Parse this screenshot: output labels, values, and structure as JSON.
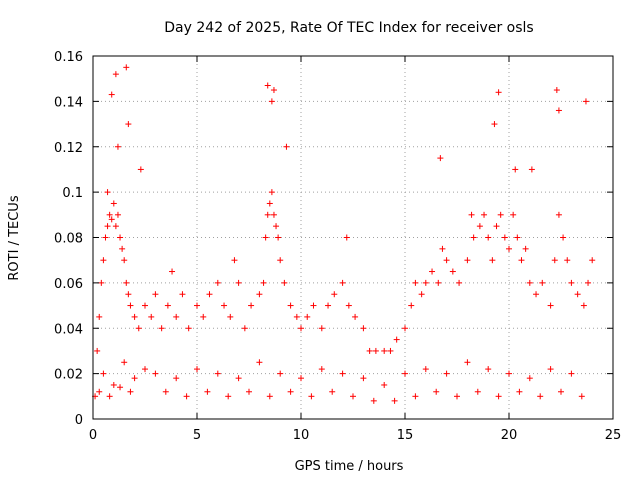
{
  "chart_data": {
    "type": "scatter",
    "title": "Day 242 of 2025, Rate Of TEC Index for receiver osls",
    "xlabel": "GPS time / hours",
    "ylabel": "ROTI / TECUs",
    "xlim": [
      0,
      25
    ],
    "ylim": [
      0,
      0.16
    ],
    "x_ticks": [
      0,
      5,
      10,
      15,
      20,
      25
    ],
    "x_tick_labels": [
      "0",
      "5",
      "10",
      "15",
      "20",
      "25"
    ],
    "y_ticks": [
      0,
      0.02,
      0.04,
      0.06,
      0.08,
      0.1,
      0.12,
      0.14,
      0.16
    ],
    "y_tick_labels": [
      "0",
      "0.02",
      "0.04",
      "0.06",
      "0.08",
      "0.1",
      "0.12",
      "0.14",
      "0.16"
    ],
    "grid": true,
    "marker": "plus",
    "color": "#ff0000",
    "series": [
      {
        "x": [
          0.1,
          0.2,
          0.3,
          0.4,
          0.5,
          0.6,
          0.7,
          0.8,
          0.9,
          1.0,
          1.1,
          1.2,
          1.3,
          1.4,
          1.5,
          1.6,
          1.7,
          1.8,
          2.0,
          2.2,
          2.5,
          2.8,
          3.0,
          3.3,
          3.6,
          4.0,
          4.3,
          4.6,
          5.0,
          5.3,
          5.6,
          6.0,
          6.3,
          6.6,
          7.0,
          7.3,
          7.6,
          8.0,
          8.2,
          8.3,
          8.4,
          8.5,
          8.6,
          8.7,
          8.8,
          8.9,
          9.0,
          9.2,
          9.5,
          9.8,
          10.0,
          10.3,
          10.6,
          11.0,
          11.3,
          11.6,
          12.0,
          12.3,
          12.6,
          13.0,
          13.3,
          13.6,
          14.0,
          14.3,
          14.6,
          15.0,
          15.3,
          15.5,
          15.8,
          16.0,
          16.3,
          16.6,
          16.8,
          17.0,
          17.3,
          17.6,
          18.0,
          18.3,
          18.6,
          18.8,
          19.0,
          19.2,
          19.4,
          19.6,
          19.8,
          20.0,
          20.2,
          20.4,
          20.6,
          20.8,
          21.0,
          21.3,
          21.6,
          22.0,
          22.2,
          22.4,
          22.6,
          22.8,
          23.0,
          23.3,
          23.6,
          23.8,
          24.0,
          0.5,
          1.0,
          1.5,
          2.0,
          2.5,
          3.0,
          4.0,
          5.0,
          6.0,
          7.0,
          8.0,
          9.0,
          10.0,
          11.0,
          12.0,
          13.0,
          14.0,
          15.0,
          16.0,
          17.0,
          18.0,
          19.0,
          20.0,
          21.0,
          22.0,
          23.0,
          0.3,
          0.8,
          1.3,
          1.8,
          3.5,
          4.5,
          5.5,
          6.5,
          7.5,
          8.5,
          9.5,
          10.5,
          11.5,
          12.5,
          13.5,
          14.5,
          15.5,
          16.5,
          17.5,
          18.5,
          19.5,
          20.5,
          21.5,
          22.5,
          23.5,
          0.7,
          1.2,
          1.7,
          2.3,
          3.8,
          6.8,
          8.6,
          9.3,
          12.2,
          16.7,
          18.2,
          19.3,
          20.3,
          21.1,
          22.3,
          23.7,
          0.9,
          1.1,
          1.6,
          8.4,
          8.7,
          19.5,
          22.4
        ],
        "y": [
          0.01,
          0.03,
          0.045,
          0.06,
          0.07,
          0.08,
          0.085,
          0.09,
          0.088,
          0.095,
          0.085,
          0.09,
          0.08,
          0.075,
          0.07,
          0.06,
          0.055,
          0.05,
          0.045,
          0.04,
          0.05,
          0.045,
          0.055,
          0.04,
          0.05,
          0.045,
          0.055,
          0.04,
          0.05,
          0.045,
          0.055,
          0.06,
          0.05,
          0.045,
          0.06,
          0.04,
          0.05,
          0.055,
          0.06,
          0.08,
          0.09,
          0.095,
          0.1,
          0.09,
          0.085,
          0.08,
          0.07,
          0.06,
          0.05,
          0.045,
          0.04,
          0.045,
          0.05,
          0.04,
          0.05,
          0.055,
          0.06,
          0.05,
          0.045,
          0.04,
          0.03,
          0.03,
          0.03,
          0.03,
          0.035,
          0.04,
          0.05,
          0.06,
          0.055,
          0.06,
          0.065,
          0.06,
          0.075,
          0.07,
          0.065,
          0.06,
          0.07,
          0.08,
          0.085,
          0.09,
          0.08,
          0.07,
          0.085,
          0.09,
          0.08,
          0.075,
          0.09,
          0.08,
          0.07,
          0.075,
          0.06,
          0.055,
          0.06,
          0.05,
          0.07,
          0.09,
          0.08,
          0.07,
          0.06,
          0.055,
          0.05,
          0.06,
          0.07,
          0.02,
          0.015,
          0.025,
          0.018,
          0.022,
          0.02,
          0.018,
          0.022,
          0.02,
          0.018,
          0.025,
          0.02,
          0.018,
          0.022,
          0.02,
          0.018,
          0.015,
          0.02,
          0.022,
          0.02,
          0.025,
          0.022,
          0.02,
          0.018,
          0.022,
          0.02,
          0.012,
          0.01,
          0.014,
          0.012,
          0.012,
          0.01,
          0.012,
          0.01,
          0.012,
          0.01,
          0.012,
          0.01,
          0.012,
          0.01,
          0.008,
          0.008,
          0.01,
          0.012,
          0.01,
          0.012,
          0.01,
          0.012,
          0.01,
          0.012,
          0.01,
          0.1,
          0.12,
          0.13,
          0.11,
          0.065,
          0.07,
          0.14,
          0.12,
          0.08,
          0.115,
          0.09,
          0.13,
          0.11,
          0.11,
          0.145,
          0.14,
          0.143,
          0.152,
          0.155,
          0.147,
          0.145,
          0.144,
          0.136
        ]
      }
    ]
  }
}
